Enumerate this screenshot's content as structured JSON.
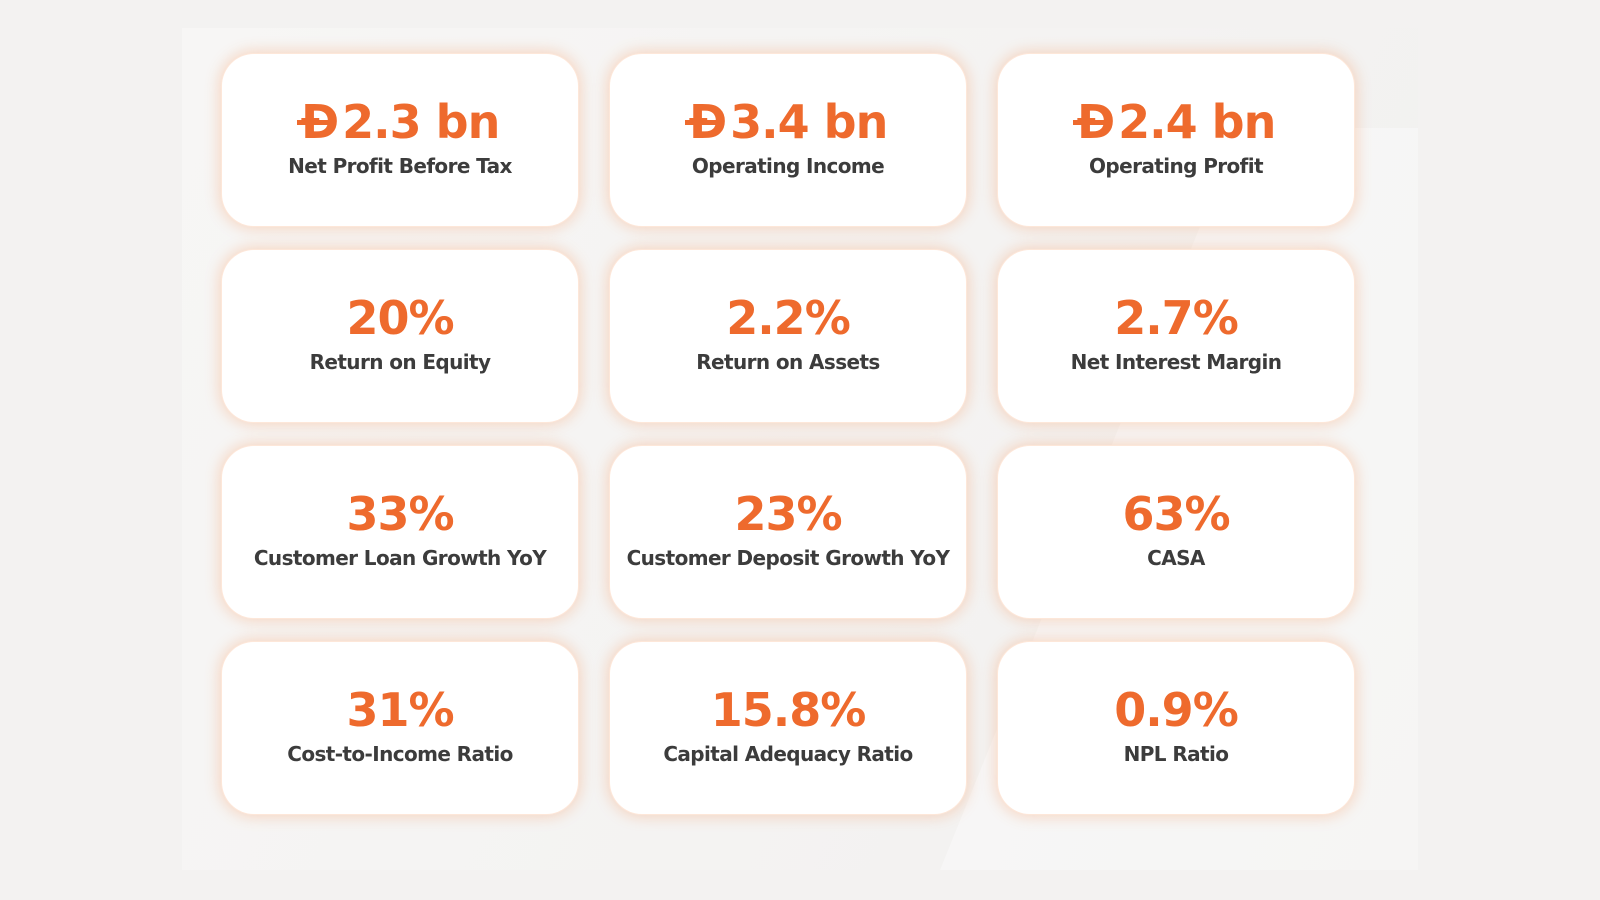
{
  "colors": {
    "accent": "#ee6a2d",
    "label": "#3c3c3c",
    "card_background": "#ffffff",
    "page_background": "#f3f2f1"
  },
  "currency_symbol": "Đ",
  "metrics": [
    {
      "value": "2.3 bn",
      "label": "Net Profit Before Tax"
    },
    {
      "value": "3.4 bn",
      "label": "Operating Income"
    },
    {
      "value": "2.4 bn",
      "label": "Operating Profit"
    },
    {
      "value": "20%",
      "label": "Return on Equity"
    },
    {
      "value": "2.2%",
      "label": "Return on Assets"
    },
    {
      "value": "2.7%",
      "label": "Net Interest Margin"
    },
    {
      "value": "33%",
      "label": "Customer Loan Growth YoY"
    },
    {
      "value": "23%",
      "label": "Customer Deposit Growth YoY"
    },
    {
      "value": "63%",
      "label": "CASA"
    },
    {
      "value": "31%",
      "label": "Cost-to-Income Ratio"
    },
    {
      "value": "15.8%",
      "label": "Capital Adequacy Ratio"
    },
    {
      "value": "0.9%",
      "label": "NPL Ratio"
    }
  ]
}
